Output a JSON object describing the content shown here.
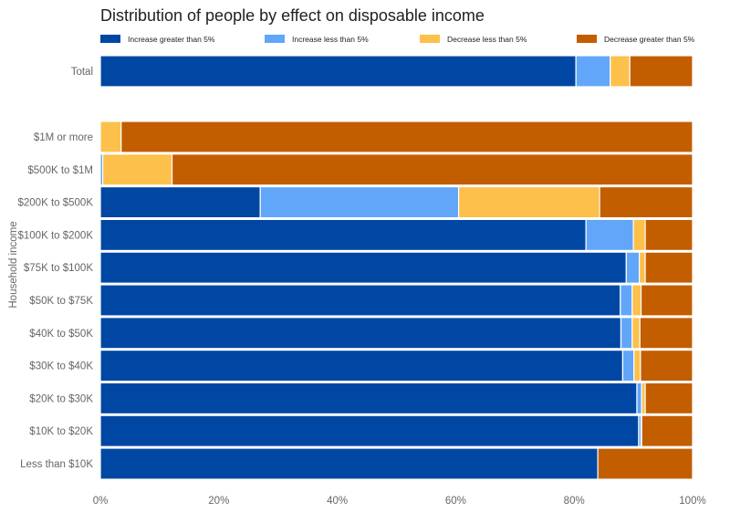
{
  "chart_data": {
    "type": "bar",
    "orientation": "horizontal",
    "stacked": true,
    "normalized": true,
    "title": "Distribution of people by effect on disposable income",
    "ylabel": "Household income",
    "xlabel": "",
    "xlim": [
      0,
      100
    ],
    "x_ticks": [
      "0%",
      "20%",
      "40%",
      "60%",
      "80%",
      "100%"
    ],
    "legend_position": "top",
    "grid": false,
    "series": [
      {
        "name": "Increase greater than 5%",
        "color": "#0047a3"
      },
      {
        "name": "Increase less than 5%",
        "color": "#61a6f9"
      },
      {
        "name": "Decrease less than 5%",
        "color": "#fcc04b"
      },
      {
        "name": "Decrease greater than 5%",
        "color": "#c35e00"
      }
    ],
    "groups": [
      {
        "name": "total",
        "categories": [
          "Total"
        ],
        "values": [
          [
            80.3,
            5.8,
            3.3,
            10.6
          ]
        ]
      },
      {
        "name": "income",
        "categories": [
          "$1M or more",
          "$500K to $1M",
          "$200K to $500K",
          "$100K to $200K",
          "$75K to $100K",
          "$50K to $75K",
          "$40K to $50K",
          "$30K to $40K",
          "$20K to $30K",
          "$10K to $20K",
          "Less than $10K"
        ],
        "values": [
          [
            0,
            0,
            3.5,
            96.5
          ],
          [
            0,
            0.4,
            11.7,
            87.9
          ],
          [
            27.0,
            33.5,
            23.8,
            15.7
          ],
          [
            82.0,
            8.0,
            2.0,
            8.0
          ],
          [
            88.8,
            2.2,
            1.0,
            8.0
          ],
          [
            87.8,
            2.0,
            1.5,
            8.7
          ],
          [
            87.9,
            1.9,
            1.3,
            8.9
          ],
          [
            88.2,
            1.9,
            1.1,
            8.8
          ],
          [
            90.6,
            0.8,
            0.6,
            8.0
          ],
          [
            90.9,
            0.4,
            0.1,
            8.6
          ],
          [
            84.0,
            0,
            0,
            16.0
          ]
        ]
      }
    ]
  }
}
